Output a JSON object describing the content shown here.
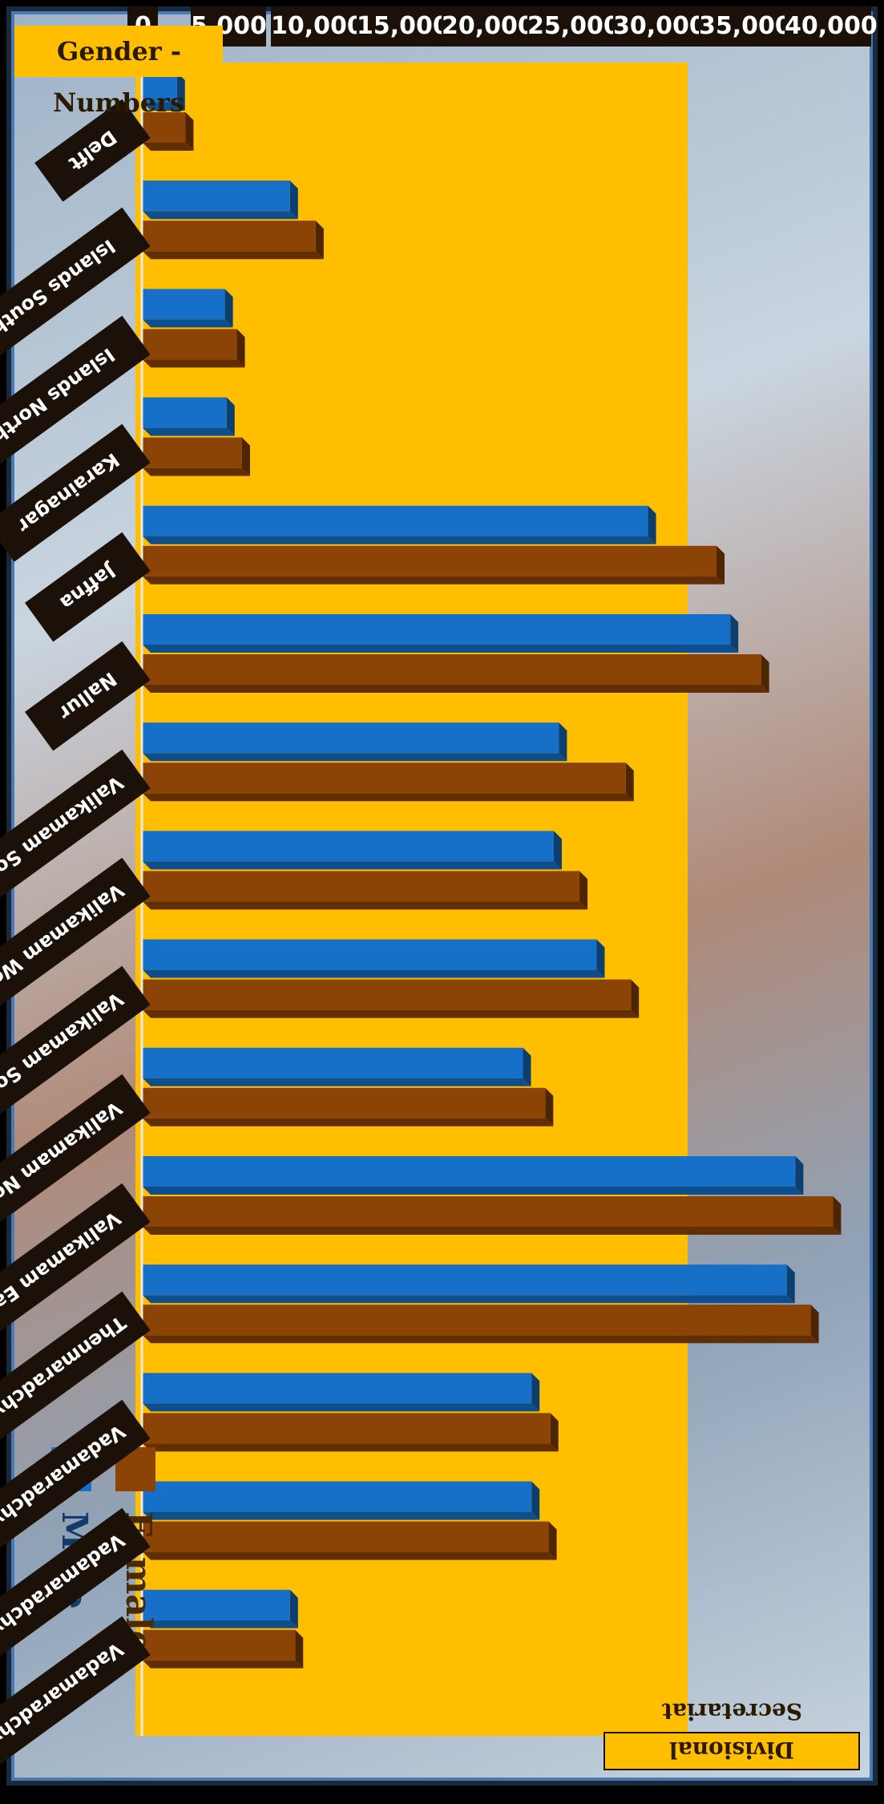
{
  "chart_data": {
    "type": "bar",
    "title": "",
    "xlabel": "Divisional Secretariat",
    "ylabel": "Gender - Numbers",
    "ylim": [
      0,
      40000
    ],
    "yticks": [
      "0",
      "5,000",
      "10,000",
      "15,000",
      "20,000",
      "25,000",
      "30,000",
      "35,000",
      "40,000"
    ],
    "legend_position": "top-left",
    "categories": [
      "Delft",
      "Islands South",
      "Islands North",
      "Karainagar",
      "Jaffna",
      "Nallur",
      "Valikamam South West",
      "Valikamam West",
      "Valikamam South",
      "Valikamam North",
      "Valikamam East",
      "Thenmaradchy",
      "Vadamaradchy South West",
      "Vadamaradchy North",
      "Vadamaradchy East"
    ],
    "series": [
      {
        "name": "Male",
        "color": "#1670c8",
        "values": [
          2000,
          8600,
          4800,
          4900,
          29500,
          34300,
          24300,
          24000,
          26500,
          22200,
          38100,
          37600,
          22700,
          22700,
          8600
        ]
      },
      {
        "name": "Female",
        "color": "#8c4306",
        "values": [
          2500,
          10100,
          5500,
          5800,
          33500,
          36100,
          28200,
          25500,
          28500,
          23500,
          40300,
          39000,
          23800,
          23700,
          8900
        ]
      }
    ],
    "colors": {
      "plot_bg": "#ffbf00",
      "chip_bg": "#1b1109",
      "frame": "#4a79b4"
    }
  }
}
